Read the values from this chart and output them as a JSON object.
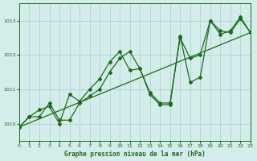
{
  "xlabel": "Graphe pression niveau de la mer (hPa)",
  "xlim": [
    0,
    23
  ],
  "ylim": [
    1009.5,
    1013.5
  ],
  "yticks": [
    1010,
    1011,
    1012,
    1013
  ],
  "xticks": [
    0,
    1,
    2,
    3,
    4,
    5,
    6,
    7,
    8,
    9,
    10,
    11,
    12,
    13,
    14,
    15,
    16,
    17,
    18,
    19,
    20,
    21,
    22,
    23
  ],
  "bg_color": "#d4ecea",
  "line_color": "#1a6b1a",
  "grid_color": "#b0d8d8",
  "series1_x": [
    0,
    1,
    2,
    3,
    4,
    5,
    6,
    7,
    8,
    9,
    10,
    11,
    12,
    13,
    14,
    15,
    16,
    17,
    18,
    19,
    20,
    21,
    22,
    23
  ],
  "series1_y": [
    1009.9,
    1010.2,
    1010.2,
    1010.6,
    1010.1,
    1010.1,
    1010.6,
    1010.8,
    1011.0,
    1011.5,
    1011.9,
    1012.1,
    1011.6,
    1010.9,
    1010.6,
    1010.6,
    1012.5,
    1011.9,
    1012.0,
    1013.0,
    1012.6,
    1012.7,
    1013.1,
    1012.65
  ],
  "series2_x": [
    0,
    1,
    2,
    3,
    4,
    5,
    6,
    7,
    8,
    9,
    10,
    11,
    12,
    13,
    14,
    15,
    16,
    17,
    18,
    19,
    20,
    21,
    22,
    23
  ],
  "series2_y": [
    1009.9,
    1010.2,
    1010.4,
    1010.5,
    1010.0,
    1010.85,
    1010.65,
    1011.0,
    1011.3,
    1011.8,
    1012.1,
    1011.55,
    1011.6,
    1010.85,
    1010.55,
    1010.55,
    1012.55,
    1011.2,
    1011.35,
    1013.0,
    1012.7,
    1012.65,
    1013.05,
    1012.65
  ],
  "trend_x": [
    0,
    23
  ],
  "trend_y": [
    1009.9,
    1012.65
  ]
}
